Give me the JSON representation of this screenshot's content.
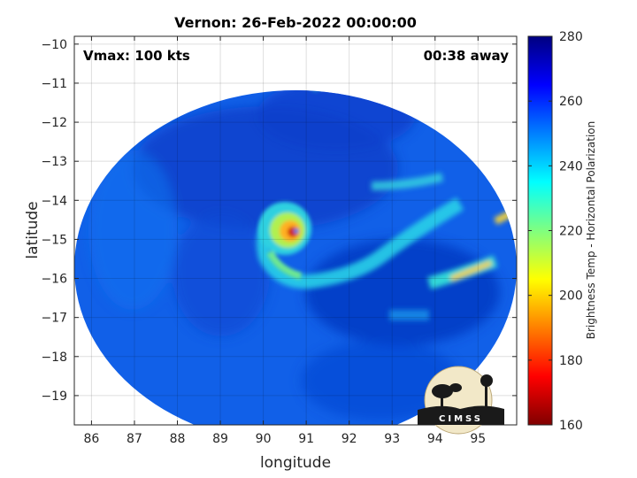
{
  "chart_data": {
    "type": "heatmap",
    "title": "Vernon: 26-Feb-2022 00:00:00",
    "xlabel": "longitude",
    "ylabel": "latitude",
    "xlim": [
      85.6,
      95.9
    ],
    "ylim": [
      -19.75,
      -9.8
    ],
    "x_ticks": [
      "86",
      "87",
      "88",
      "89",
      "90",
      "91",
      "92",
      "93",
      "94",
      "95"
    ],
    "y_ticks": [
      "-10",
      "-11",
      "-12",
      "-13",
      "-14",
      "-15",
      "-16",
      "-17",
      "-18",
      "-19"
    ],
    "grid": true,
    "colorbar": {
      "label": "Brightness Temp - Horizontal Polarization",
      "min": 160,
      "max": 280,
      "ticks": [
        "160",
        "180",
        "200",
        "220",
        "240",
        "260",
        "280"
      ],
      "colormap": "jet"
    },
    "annotations": {
      "vmax": "Vmax: 100 kts",
      "time_away": "00:38 away"
    },
    "storm_center": {
      "lon": 90.85,
      "lat": -14.85
    },
    "logo": "CIMSS"
  }
}
